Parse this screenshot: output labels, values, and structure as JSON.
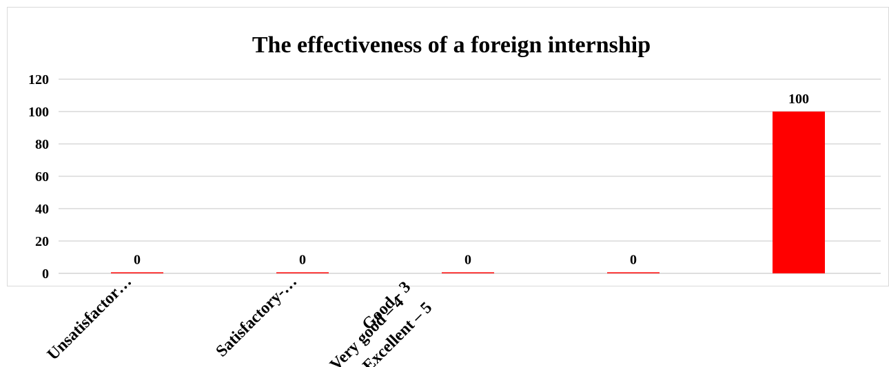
{
  "chart_data": {
    "type": "bar",
    "title": "The effectiveness of a foreign internship",
    "categories": [
      "Unsatisfactor…",
      "Satisfactory-…",
      "Very good – 4",
      "Good - 3",
      "Excellent – 5"
    ],
    "values": [
      0,
      0,
      0,
      0,
      100
    ],
    "data_labels": [
      "0",
      "0",
      "0",
      "0",
      "100"
    ],
    "y_ticks": [
      "0",
      "20",
      "40",
      "60",
      "80",
      "100",
      "120"
    ],
    "ylim": [
      0,
      120
    ],
    "xlabel": "",
    "ylabel": "",
    "grid": true,
    "legend": "none",
    "bar_color": "#ff0000"
  }
}
